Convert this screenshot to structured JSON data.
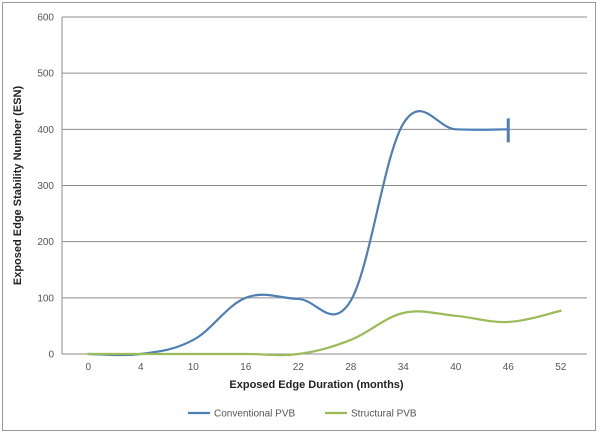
{
  "chart_data": {
    "type": "line",
    "xlabel": "Exposed Edge Duration (months)",
    "ylabel": "Exposed Edge Stability Number (ESN)",
    "categories": [
      "0",
      "4",
      "10",
      "16",
      "22",
      "28",
      "34",
      "40",
      "46",
      "52"
    ],
    "ylim": [
      0,
      600
    ],
    "yticks": [
      0,
      100,
      200,
      300,
      400,
      500,
      600
    ],
    "grid": true,
    "legend_position": "bottom",
    "series": [
      {
        "name": "Conventional PVB",
        "color": "#4e7fb5",
        "values": [
          0,
          0,
          25,
          100,
          98,
          95,
          410,
          400,
          400,
          null
        ],
        "end_marker": "vertical-bar"
      },
      {
        "name": "Structural PVB",
        "color": "#9bbb59",
        "values": [
          0,
          0,
          0,
          0,
          0,
          25,
          73,
          68,
          57,
          77
        ]
      }
    ]
  }
}
